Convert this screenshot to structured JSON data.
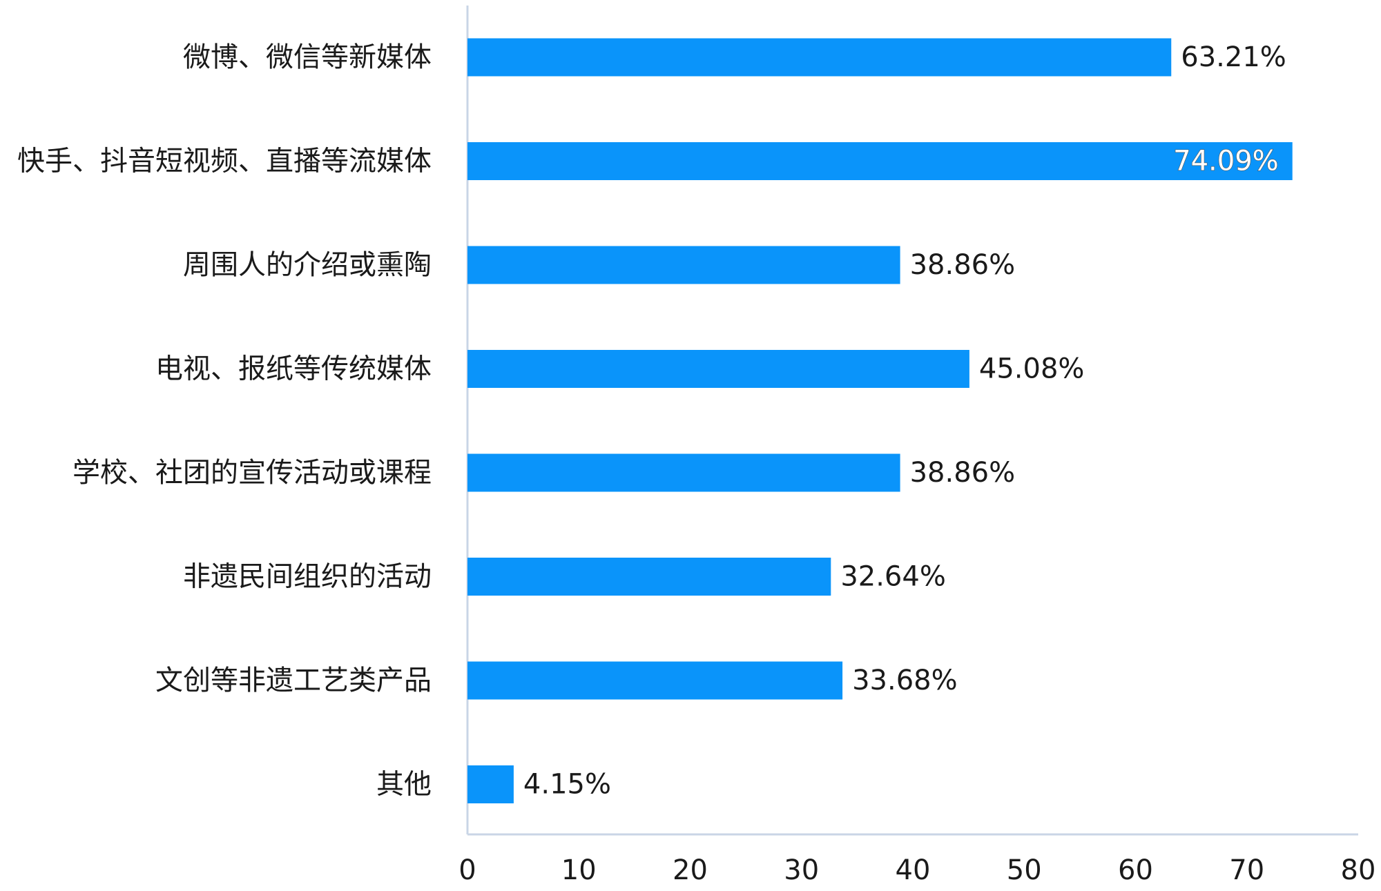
{
  "chart_data": {
    "type": "bar",
    "orientation": "horizontal",
    "categories": [
      "微博、微信等新媒体",
      "快手、抖音短视频、直播等流媒体",
      "周围人的介绍或熏陶",
      "电视、报纸等传统媒体",
      "学校、社团的宣传活动或课程",
      "非遗民间组织的活动",
      "文创等非遗工艺类产品",
      "其他"
    ],
    "values": [
      63.21,
      74.09,
      38.86,
      45.08,
      38.86,
      32.64,
      33.68,
      4.15
    ],
    "value_labels": [
      "63.21%",
      "74.09%",
      "38.86%",
      "45.08%",
      "38.86%",
      "32.64%",
      "33.68%",
      "4.15%"
    ],
    "color": "#0a94fa",
    "xlim": [
      0,
      80
    ],
    "xticks": [
      0,
      10,
      20,
      30,
      40,
      50,
      60,
      70,
      80
    ],
    "grid": false
  }
}
